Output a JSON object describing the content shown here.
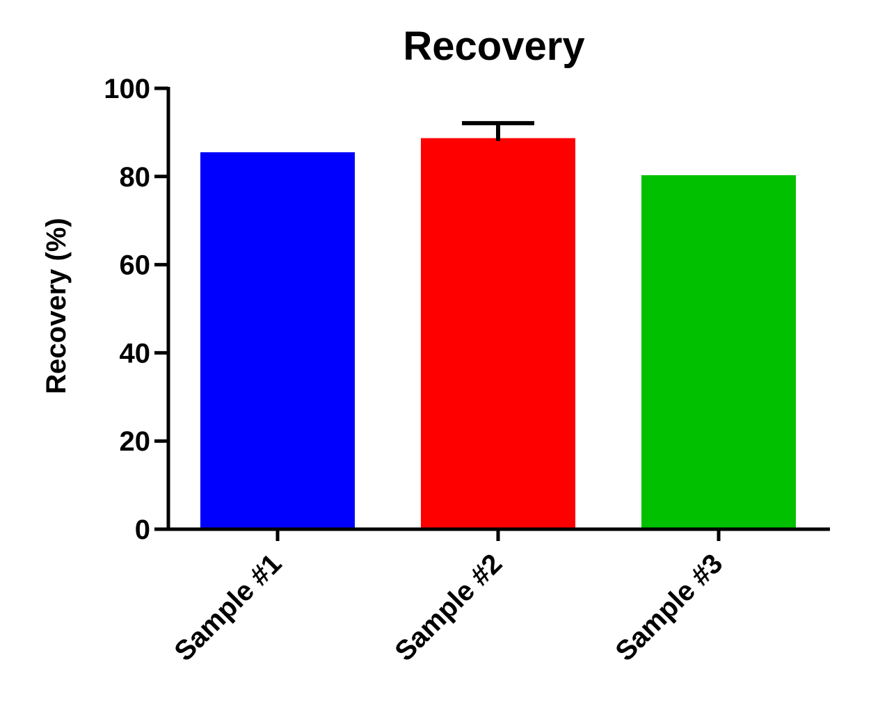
{
  "chart_data": {
    "type": "bar",
    "title": "Recovery",
    "xlabel": "",
    "ylabel": "Recovery (%)",
    "ylim": [
      0,
      100
    ],
    "yticks": [
      0,
      20,
      40,
      60,
      80,
      100
    ],
    "categories": [
      "Sample #1",
      "Sample #2",
      "Sample #3"
    ],
    "values": [
      85.5,
      88.7,
      80.3
    ],
    "error_upper": [
      null,
      3.4,
      null
    ],
    "colors": [
      "#0000ff",
      "#ff0000",
      "#00c000"
    ],
    "grid": false,
    "legend": "none"
  }
}
